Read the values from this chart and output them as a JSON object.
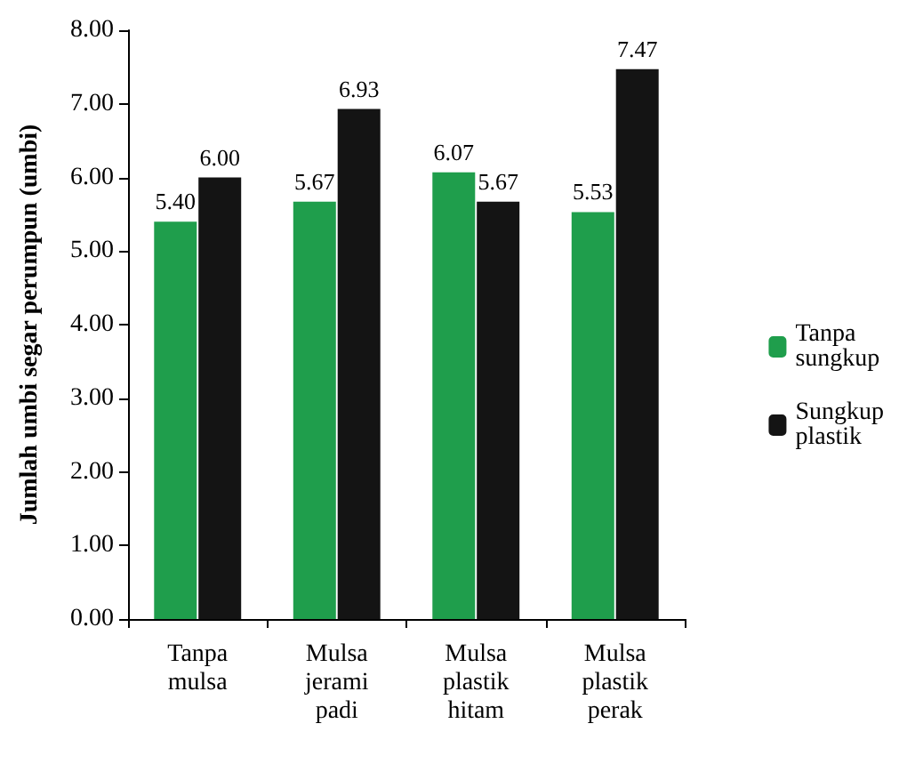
{
  "chart_data": {
    "type": "bar",
    "ylabel": "Jumlah umbi segar perumpun (umbi)",
    "categories": [
      "Tanpa mulsa",
      "Mulsa jerami padi",
      "Mulsa plastik hitam",
      "Mulsa plastik perak"
    ],
    "series": [
      {
        "name": "Tanpa sungkup",
        "color": "#1f9e4c",
        "values": [
          5.4,
          5.67,
          6.07,
          5.53
        ],
        "value_labels": [
          "5.40",
          "5.67",
          "6.07",
          "5.53"
        ]
      },
      {
        "name": "Sungkup plastik",
        "color": "#141414",
        "values": [
          6.0,
          6.93,
          5.67,
          7.47
        ],
        "value_labels": [
          "6.00",
          "6.93",
          "5.67",
          "7.47"
        ]
      }
    ],
    "ylim": [
      0,
      8
    ],
    "yticks": [
      {
        "value": 0,
        "label": "0.00"
      },
      {
        "value": 1,
        "label": "1.00"
      },
      {
        "value": 2,
        "label": "2.00"
      },
      {
        "value": 3,
        "label": "3.00"
      },
      {
        "value": 4,
        "label": "4.00"
      },
      {
        "value": 5,
        "label": "5.00"
      },
      {
        "value": 6,
        "label": "6.00"
      },
      {
        "value": 7,
        "label": "7.00"
      },
      {
        "value": 8,
        "label": "8.00"
      }
    ],
    "grid": false,
    "legend": "right"
  }
}
